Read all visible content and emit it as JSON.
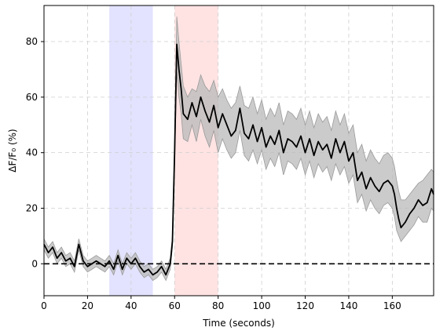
{
  "chart_data": {
    "type": "line",
    "title": "",
    "xlabel": "Time (seconds)",
    "ylabel": "ΔF/F₀ (%)",
    "xlim": [
      0,
      179
    ],
    "ylim": [
      -11.5,
      93
    ],
    "xticks": [
      0,
      20,
      40,
      60,
      80,
      100,
      120,
      140,
      160
    ],
    "yticks": [
      0,
      20,
      40,
      60,
      80
    ],
    "grid": true,
    "zero_line": 0,
    "shaded_regions": [
      {
        "x0": 30,
        "x1": 50,
        "color": "#e3e3ff"
      },
      {
        "x0": 60,
        "x1": 80,
        "color": "#ffe3e3"
      }
    ],
    "band_color": "#b9b9b9",
    "line_color": "#000000",
    "series": [
      {
        "x": [
          0,
          2,
          4,
          6,
          8,
          10,
          12,
          14,
          16,
          18,
          20,
          22,
          24,
          26,
          28,
          30,
          32,
          34,
          36,
          38,
          40,
          42,
          44,
          46,
          48,
          50,
          52,
          54,
          56,
          58,
          59,
          60,
          61,
          62,
          63,
          64,
          66,
          68,
          70,
          72,
          74,
          76,
          78,
          80,
          82,
          84,
          86,
          88,
          90,
          92,
          94,
          96,
          98,
          100,
          102,
          104,
          106,
          108,
          110,
          112,
          114,
          116,
          118,
          120,
          122,
          124,
          126,
          128,
          130,
          132,
          134,
          136,
          138,
          140,
          142,
          144,
          146,
          148,
          150,
          152,
          154,
          156,
          158,
          160,
          161,
          162,
          163,
          164,
          166,
          168,
          170,
          172,
          174,
          176,
          178,
          179
        ],
        "y": [
          7,
          4,
          6,
          2,
          4,
          1,
          2,
          -1,
          7,
          1,
          -1,
          0,
          1,
          0,
          -1,
          1,
          -2,
          3,
          -2,
          2,
          0,
          2,
          -1,
          -3,
          -2,
          -4,
          -3,
          -1,
          -4,
          0,
          8,
          40,
          79,
          70,
          63,
          54,
          52,
          58,
          53,
          60,
          55,
          51,
          57,
          49,
          54,
          50,
          46,
          48,
          56,
          47,
          45,
          50,
          44,
          49,
          42,
          46,
          43,
          48,
          40,
          45,
          44,
          42,
          46,
          40,
          45,
          39,
          44,
          41,
          43,
          38,
          45,
          40,
          44,
          37,
          40,
          30,
          33,
          27,
          31,
          28,
          26,
          29,
          30,
          28,
          25,
          20,
          16,
          13,
          15,
          18,
          20,
          23,
          21,
          22,
          27,
          25
        ],
        "upper": [
          9,
          6,
          8,
          4,
          6,
          3,
          4,
          1,
          9,
          3,
          1,
          2,
          3,
          2,
          1,
          3,
          0,
          5,
          0,
          4,
          2,
          4,
          1,
          -1,
          0,
          -2,
          -1,
          1,
          -2,
          2,
          10,
          44,
          89,
          80,
          72,
          64,
          60,
          63,
          62,
          68,
          64,
          62,
          66,
          60,
          63,
          59,
          56,
          58,
          64,
          57,
          56,
          60,
          54,
          59,
          52,
          56,
          53,
          58,
          50,
          55,
          54,
          52,
          56,
          50,
          55,
          49,
          54,
          51,
          53,
          48,
          55,
          50,
          54,
          47,
          50,
          40,
          43,
          37,
          41,
          38,
          36,
          39,
          40,
          38,
          35,
          30,
          26,
          23,
          23,
          25,
          27,
          29,
          30,
          32,
          34,
          33
        ],
        "lower": [
          5,
          2,
          4,
          0,
          2,
          -1,
          0,
          -3,
          5,
          -1,
          -3,
          -2,
          -1,
          -2,
          -3,
          -1,
          -4,
          1,
          -4,
          0,
          -2,
          0,
          -3,
          -5,
          -4,
          -6,
          -5,
          -3,
          -6,
          -2,
          6,
          36,
          69,
          60,
          54,
          45,
          44,
          50,
          44,
          52,
          46,
          42,
          48,
          40,
          45,
          41,
          38,
          40,
          48,
          39,
          37,
          41,
          36,
          41,
          34,
          38,
          35,
          40,
          32,
          37,
          36,
          34,
          38,
          32,
          37,
          31,
          36,
          33,
          35,
          30,
          36,
          32,
          35,
          29,
          32,
          22,
          25,
          19,
          23,
          20,
          18,
          21,
          22,
          20,
          17,
          12,
          10,
          8,
          10,
          12,
          14,
          17,
          15,
          15,
          20,
          19
        ]
      }
    ]
  }
}
